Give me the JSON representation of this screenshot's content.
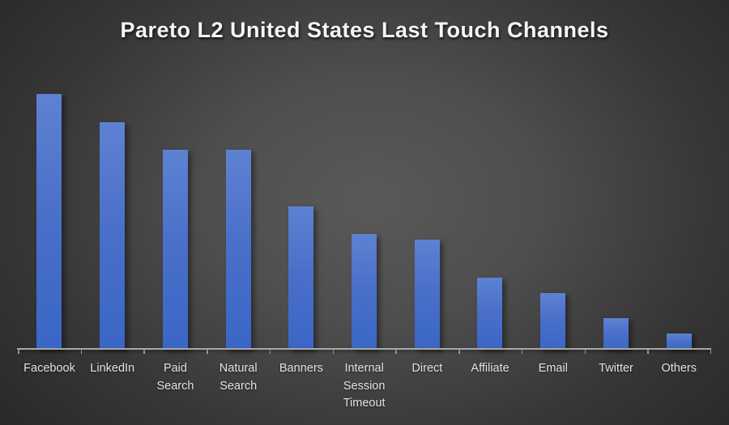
{
  "title": "Pareto L2 United States Last Touch Channels",
  "chart_data": {
    "type": "bar",
    "title": "Pareto L2 United States Last Touch Channels",
    "categories": [
      "Facebook",
      "LinkedIn",
      "Paid Search",
      "Natural Search",
      "Banners",
      "Internal Session Timeout",
      "Direct",
      "Affiliate",
      "Email",
      "Twitter",
      "Others"
    ],
    "values": [
      100,
      89,
      78,
      78,
      56,
      45,
      43,
      28,
      22,
      12,
      6
    ],
    "values_note": "no y-axis or data labels shown; values estimated from bar heights, normalized to tallest bar = 100",
    "xlabel": "",
    "ylabel": "",
    "ylim": [
      0,
      100
    ],
    "grid": false,
    "legend": false,
    "colors": {
      "bar_top": "#5e82d2",
      "bar_mid": "#4a70c9",
      "bar_bottom": "#3a66c6",
      "axis": "#a8a8a8",
      "tick_label": "#e3e3e3",
      "title": "#f5f5f5",
      "background_center": "#595959",
      "background_edge": "#252525"
    }
  }
}
